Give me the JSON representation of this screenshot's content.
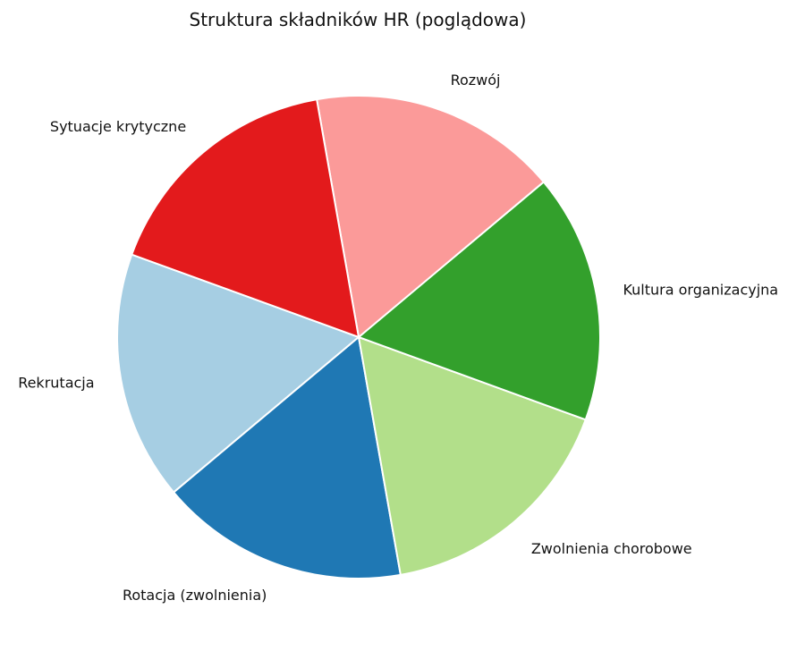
{
  "chart_data": {
    "type": "pie",
    "title": "Struktura składników HR (poglądowa)",
    "categories": [
      "Rekrutacja",
      "Rotacja (zwolnienia)",
      "Zwolnienia chorobowe",
      "Kultura organizacyjna",
      "Rozwój",
      "Sytuacje krytyczne"
    ],
    "values": [
      1,
      1,
      1,
      1,
      1,
      1
    ],
    "colors": [
      "#a6cee3",
      "#1f78b4",
      "#b2df8a",
      "#33a02c",
      "#fb9a99",
      "#e31a1c"
    ],
    "start_angle_deg": 160,
    "direction": "counterclockwise",
    "legend": "none"
  }
}
